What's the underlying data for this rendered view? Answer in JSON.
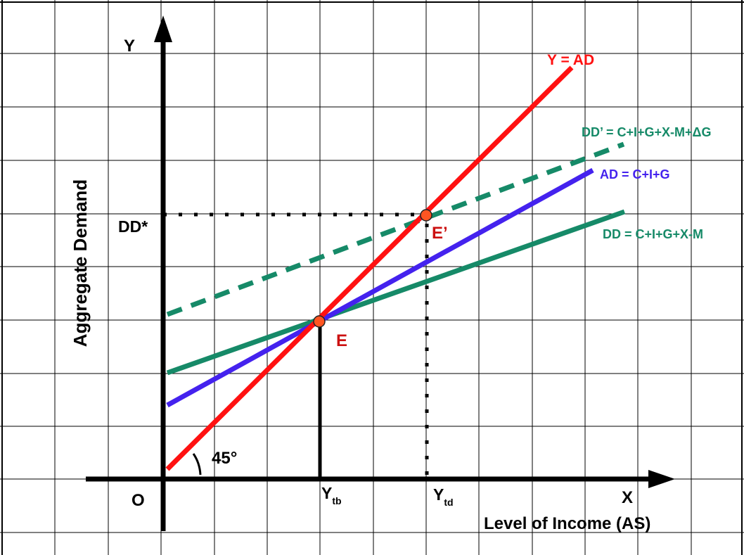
{
  "axes": {
    "y_letter": "Y",
    "x_letter": "X",
    "origin": "O",
    "y_title": "Aggregate Demand",
    "x_title": "Level of Income (AS)"
  },
  "lines": {
    "y_equals_ad": {
      "label": "Y = AD",
      "color": "#ff1111"
    },
    "ad": {
      "label": "AD = C+I+G",
      "color": "#4422ee"
    },
    "dd": {
      "label": "DD = C+I+G+X-M",
      "color": "#168a68"
    },
    "dd_prime": {
      "label": "DD’ = C+I+G+X-M+ΔG",
      "color": "#168a68"
    }
  },
  "points": {
    "e": {
      "label": "E",
      "color": "#ff5522"
    },
    "e_prime": {
      "label": "E’",
      "color": "#ff5522"
    }
  },
  "ticks": {
    "dd_star": "DD*",
    "ytb_main": "Y",
    "ytb_sub": "tb",
    "ytd_main": "Y",
    "ytd_sub": "td"
  },
  "angle_label": "45°",
  "colors": {
    "grid": "#000000",
    "background": "#ffffff",
    "label_red": "#cc1111"
  }
}
